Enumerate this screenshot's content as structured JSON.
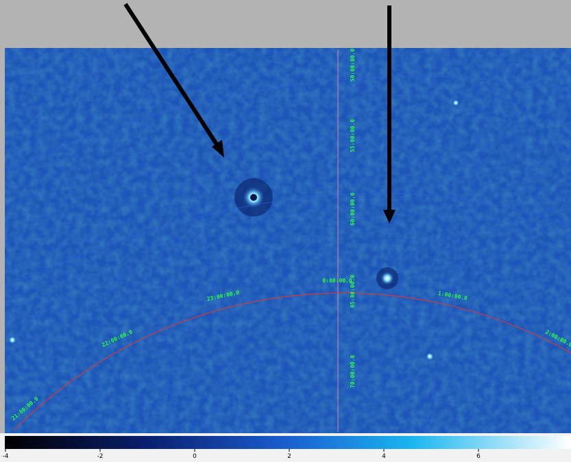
{
  "image": {
    "dec_labels": [
      "50:00:00.0",
      "55:00:00.0",
      "60:00:00.0",
      "65:00:00.0",
      "70:00:00.0"
    ],
    "ra_labels": [
      "21:00:00.0",
      "22:00:00.0",
      "23:00:00.0",
      "0:00:00.0",
      "1:00:00.0",
      "2:00:00.0"
    ]
  },
  "colorbar": {
    "range": [
      -4,
      8
    ],
    "ticks": [
      -4,
      -2,
      0,
      2,
      4,
      6
    ]
  }
}
